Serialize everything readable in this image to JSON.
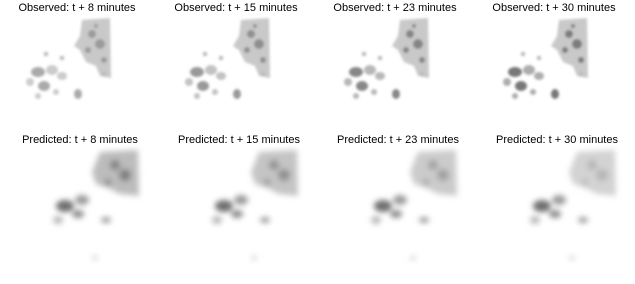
{
  "observed_titles": [
    "Observed: t + 8 minutes",
    "Observed: t + 15 minutes",
    "Observed: t + 23 minutes",
    "Observed: t + 30 minutes"
  ],
  "predicted_titles": [
    "Predicted: t + 8 minutes",
    "Predicted: t + 15 minutes",
    "Predicted: t + 23 minutes",
    "Predicted: t + 30 minutes"
  ]
}
